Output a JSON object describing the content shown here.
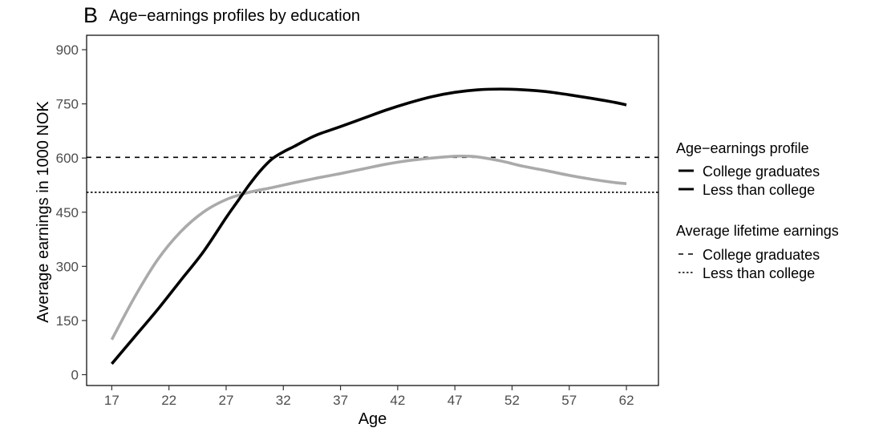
{
  "panel_tag": "B",
  "chart_data": {
    "type": "line",
    "title": "Age−earnings profiles by education",
    "xlabel": "Age",
    "ylabel": "Average earnings in 1000 NOK",
    "xlim": [
      14.8,
      64.8
    ],
    "ylim": [
      -30,
      940
    ],
    "x_ticks": [
      17,
      22,
      27,
      32,
      37,
      42,
      47,
      52,
      57,
      62
    ],
    "y_ticks": [
      0,
      150,
      300,
      450,
      600,
      750,
      900
    ],
    "grid": false,
    "legend_position": "right",
    "series": [
      {
        "name": "College graduates",
        "color": "#000000",
        "style": "solid",
        "x": [
          17,
          19,
          21,
          23,
          25,
          27,
          28,
          29,
          30,
          31,
          32,
          33,
          34,
          35,
          37,
          39,
          41,
          43,
          45,
          47,
          49,
          51,
          53,
          55,
          57,
          59,
          61,
          62
        ],
        "y": [
          30,
          105,
          180,
          260,
          340,
          435,
          480,
          525,
          565,
          597,
          617,
          633,
          650,
          665,
          687,
          710,
          733,
          753,
          770,
          782,
          789,
          791,
          789,
          784,
          775,
          765,
          754,
          747
        ]
      },
      {
        "name": "Less than college",
        "color": "#aaaaaa",
        "style": "solid",
        "x": [
          17,
          19,
          21,
          23,
          25,
          27,
          29,
          31,
          33,
          35,
          37,
          39,
          41,
          43,
          45,
          47,
          48,
          49,
          51,
          53,
          55,
          57,
          59,
          61,
          62
        ],
        "y": [
          97,
          215,
          318,
          395,
          450,
          485,
          505,
          518,
          532,
          545,
          557,
          570,
          583,
          593,
          600,
          605,
          605,
          603,
          592,
          577,
          565,
          552,
          541,
          532,
          529
        ]
      }
    ],
    "reference_lines": [
      {
        "name": "College graduates",
        "value": 602,
        "style": "dashed"
      },
      {
        "name": "Less than college",
        "value": 505,
        "style": "dotted"
      }
    ],
    "legend": {
      "profile_title": "Age−earnings profile",
      "average_title": "Average lifetime earnings"
    }
  }
}
